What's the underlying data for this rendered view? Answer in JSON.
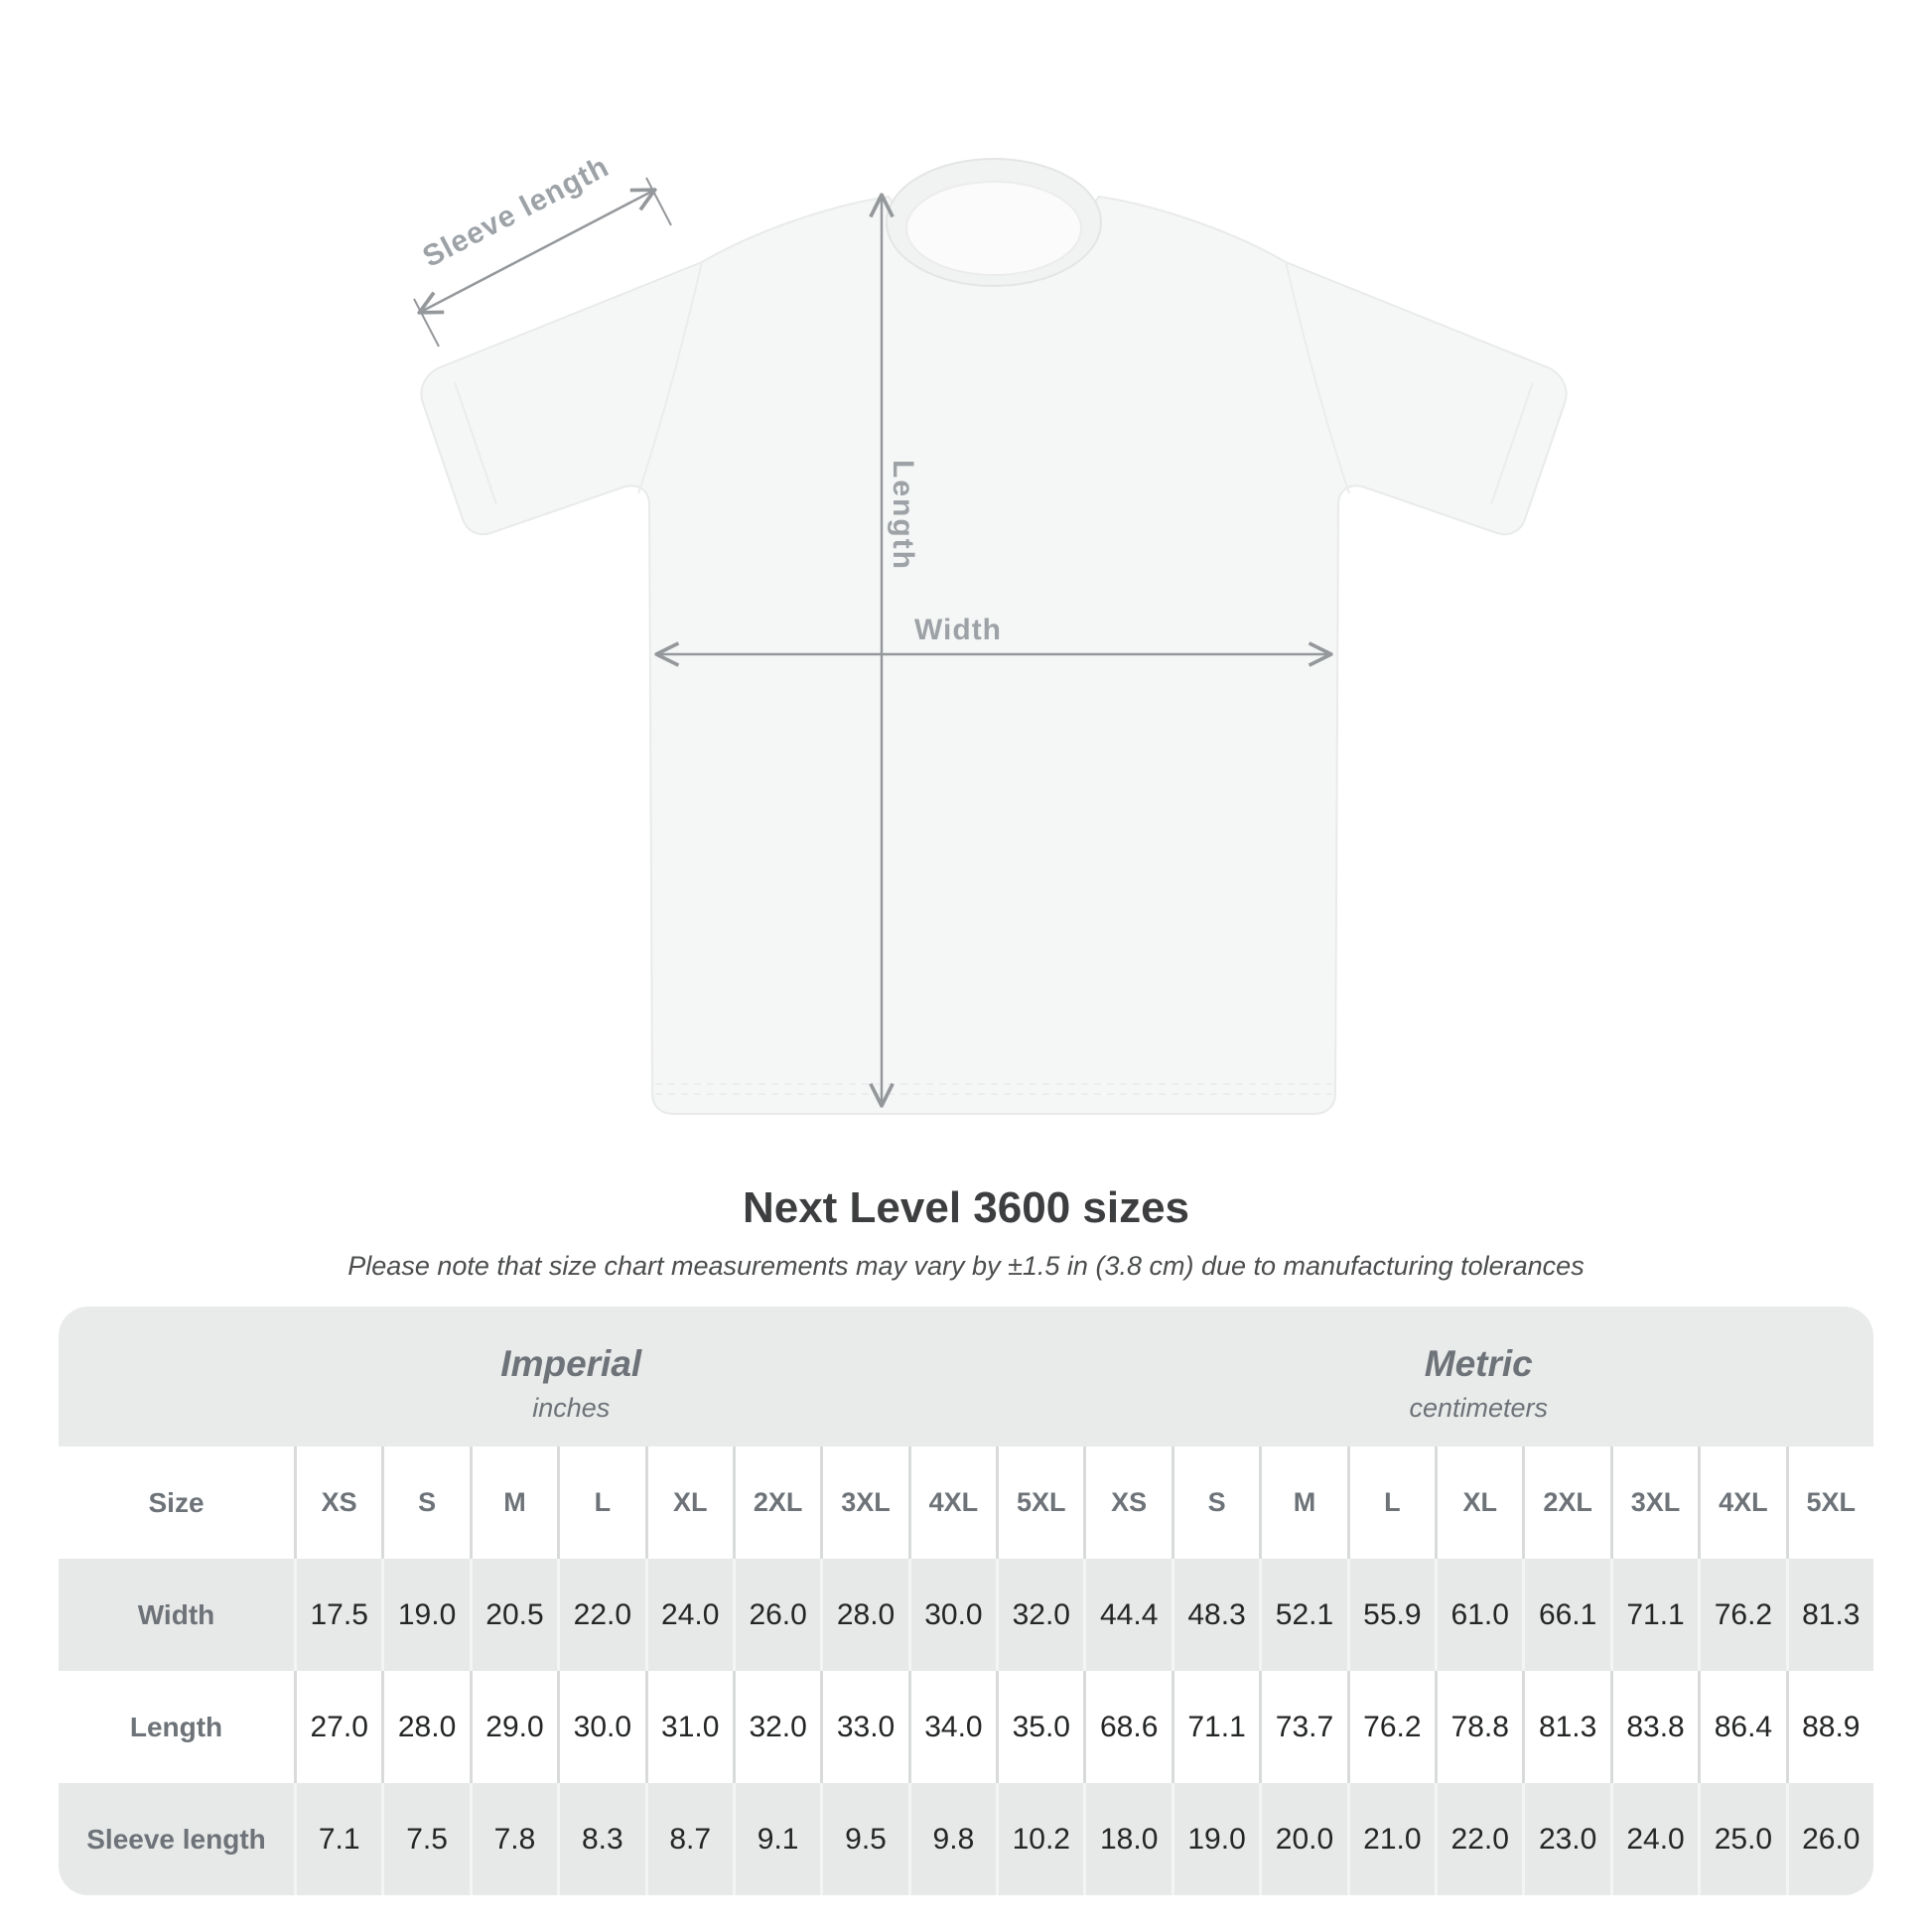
{
  "diagram": {
    "sleeve_length_label": "Sleeve length",
    "length_label": "Length",
    "width_label": "Width"
  },
  "title": "Next Level 3600 sizes",
  "subtitle": "Please note that size chart measurements may vary by ±1.5 in (3.8 cm) due to manufacturing tolerances",
  "chart_data": {
    "type": "table",
    "group_headers": [
      {
        "label": "Imperial",
        "unit": "inches"
      },
      {
        "label": "Metric",
        "unit": "centimeters"
      }
    ],
    "corner_header": "Size",
    "size_columns": [
      "XS",
      "S",
      "M",
      "L",
      "XL",
      "2XL",
      "3XL",
      "4XL",
      "5XL"
    ],
    "rows": [
      {
        "label": "Width",
        "imperial": [
          "17.5",
          "19.0",
          "20.5",
          "22.0",
          "24.0",
          "26.0",
          "28.0",
          "30.0",
          "32.0"
        ],
        "metric": [
          "44.4",
          "48.3",
          "52.1",
          "55.9",
          "61.0",
          "66.1",
          "71.1",
          "76.2",
          "81.3"
        ]
      },
      {
        "label": "Length",
        "imperial": [
          "27.0",
          "28.0",
          "29.0",
          "30.0",
          "31.0",
          "32.0",
          "33.0",
          "34.0",
          "35.0"
        ],
        "metric": [
          "68.6",
          "71.1",
          "73.7",
          "76.2",
          "78.8",
          "81.3",
          "83.8",
          "86.4",
          "88.9"
        ]
      },
      {
        "label": "Sleeve length",
        "imperial": [
          "7.1",
          "7.5",
          "7.8",
          "8.3",
          "8.7",
          "9.1",
          "9.5",
          "9.8",
          "10.2"
        ],
        "metric": [
          "18.0",
          "19.0",
          "20.0",
          "21.0",
          "22.0",
          "23.0",
          "24.0",
          "25.0",
          "26.0"
        ]
      }
    ]
  },
  "colors": {
    "background": "#ffffff",
    "shirt_fill": "#f5f6f6",
    "shirt_outline": "#e9eaea",
    "annotation_line": "#95989b",
    "annotation_text": "#9da2a7",
    "title_text": "#3c3e3f",
    "subtitle_text": "#4b4d4e",
    "table_background": "#e9eaea",
    "table_header_text": "#6d7378",
    "table_value_text": "#242626",
    "row_light": "#ffffff",
    "row_shaded": "#e7e8e8"
  }
}
